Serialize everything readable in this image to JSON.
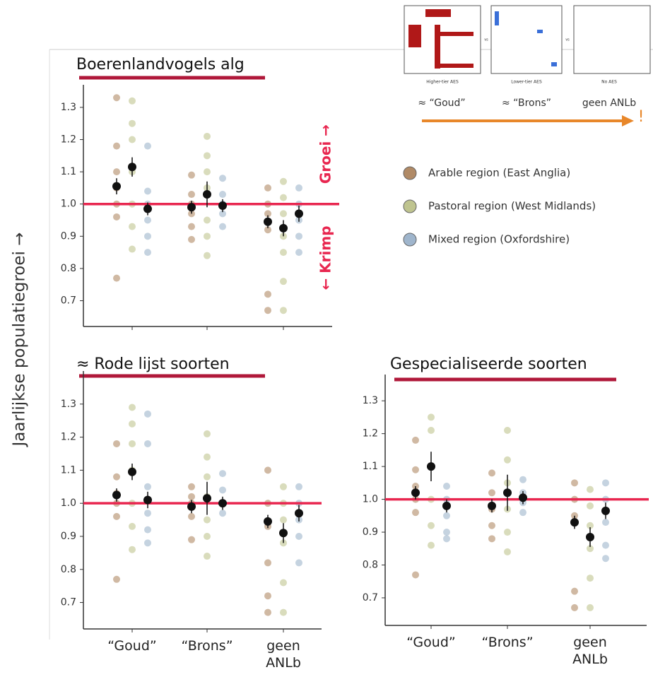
{
  "figure": {
    "ylabel": "Jaarlijkse populatiegroei →",
    "inset": {
      "panels": [
        "Higher-tier AES",
        "Lower-tier AES",
        "No AES"
      ],
      "separators": [
        "vs",
        "vs"
      ],
      "labels": [
        "≈ “Goud”",
        "≈ “Brons”",
        "geen ANLb"
      ],
      "arrow_note": "!"
    }
  },
  "chart_data": [
    {
      "type": "dotplot",
      "title": "Boerenlandvogels alg",
      "ylim": [
        0.62,
        1.37
      ],
      "yticks": [
        0.7,
        0.8,
        0.9,
        {
          "value": 1,
          "label": "1.0"
        },
        1.1,
        1.2,
        1.3
      ],
      "ref_line": 1,
      "annotations": [
        "Groei →",
        "← Krimp"
      ],
      "series": [
        {
          "name": "Arable region (East Anglia)",
          "color": "#b08a66",
          "values": [
            1.055,
            0.99,
            0.945
          ],
          "errors": [
            0.025,
            0.02,
            0.02
          ],
          "points": [
            [
              1.33,
              1.18,
              1.1,
              1.05,
              1.0,
              0.96,
              0.77
            ],
            [
              1.09,
              1.03,
              1.0,
              0.97,
              0.93,
              0.89
            ],
            [
              1.05,
              1.0,
              0.97,
              0.92,
              0.72,
              0.67
            ]
          ]
        },
        {
          "name": "Pastoral region (West Midlands)",
          "color": "#bfc48f",
          "values": [
            1.115,
            1.03,
            0.925
          ],
          "errors": [
            0.03,
            0.04,
            0.025
          ],
          "points": [
            [
              1.32,
              1.25,
              1.2,
              1.1,
              1.0,
              0.93,
              0.86
            ],
            [
              1.21,
              1.15,
              1.1,
              1.05,
              0.95,
              0.9,
              0.84
            ],
            [
              1.07,
              1.02,
              0.97,
              0.9,
              0.85,
              0.76,
              0.67
            ]
          ]
        },
        {
          "name": "Mixed region (Oxfordshire)",
          "color": "#9fb5cc",
          "values": [
            0.985,
            0.995,
            0.97
          ],
          "errors": [
            0.02,
            0.02,
            0.025
          ],
          "points": [
            [
              1.18,
              1.04,
              1.0,
              0.95,
              0.9,
              0.85
            ],
            [
              1.08,
              1.03,
              1.0,
              0.97,
              0.93
            ],
            [
              1.05,
              1.0,
              0.95,
              0.9,
              0.85
            ]
          ]
        }
      ]
    },
    {
      "type": "dotplot",
      "title": "≈ Rode lijst soorten",
      "ylim": [
        0.62,
        1.4
      ],
      "yticks": [
        0.7,
        0.8,
        0.9,
        {
          "value": 1,
          "label": "1.0"
        },
        1.1,
        1.2,
        1.3
      ],
      "ref_line": 1,
      "categories": [
        "“Goud”",
        "“Brons”",
        "geen ANLb"
      ],
      "series": [
        {
          "color": "#b08a66",
          "values": [
            1.025,
            0.99,
            0.945
          ],
          "errors": [
            0.02,
            0.02,
            0.02
          ],
          "points": [
            [
              1.18,
              1.08,
              1.03,
              1.0,
              0.96,
              0.77
            ],
            [
              1.05,
              1.02,
              1.0,
              0.96,
              0.89
            ],
            [
              1.1,
              1.0,
              0.93,
              0.82,
              0.72,
              0.67
            ]
          ]
        },
        {
          "color": "#bfc48f",
          "values": [
            1.095,
            1.015,
            0.91
          ],
          "errors": [
            0.025,
            0.05,
            0.03
          ],
          "points": [
            [
              1.29,
              1.24,
              1.18,
              1.1,
              1.0,
              0.93,
              0.86
            ],
            [
              1.21,
              1.14,
              1.08,
              1.02,
              0.95,
              0.9,
              0.84
            ],
            [
              1.05,
              1.0,
              0.95,
              0.88,
              0.76,
              0.67
            ]
          ]
        },
        {
          "color": "#9fb5cc",
          "values": [
            1.01,
            1.0,
            0.97
          ],
          "errors": [
            0.025,
            0.02,
            0.025
          ],
          "points": [
            [
              1.27,
              1.18,
              1.05,
              0.97,
              0.92,
              0.88
            ],
            [
              1.09,
              1.04,
              1.0,
              0.97
            ],
            [
              1.05,
              1.0,
              0.95,
              0.9,
              0.82
            ]
          ]
        }
      ]
    },
    {
      "type": "dotplot",
      "title": "Gespecialiseerde  soorten",
      "ylim": [
        0.616,
        1.38
      ],
      "yticks": [
        0.7,
        0.8,
        0.9,
        {
          "value": 1,
          "label": "1.0"
        },
        1.1,
        1.2,
        1.3
      ],
      "ref_line": 1,
      "categories": [
        "“Goud”",
        "“Brons”",
        "geen ANLb"
      ],
      "series": [
        {
          "color": "#b08a66",
          "values": [
            1.02,
            0.98,
            0.93
          ],
          "errors": [
            0.02,
            0.02,
            0.02
          ],
          "points": [
            [
              1.18,
              1.09,
              1.04,
              1.0,
              0.96,
              0.77
            ],
            [
              1.08,
              1.02,
              0.97,
              0.92,
              0.88
            ],
            [
              1.05,
              1.0,
              0.95,
              0.72,
              0.67
            ]
          ]
        },
        {
          "color": "#bfc48f",
          "values": [
            1.1,
            1.02,
            0.885
          ],
          "errors": [
            0.045,
            0.055,
            0.03
          ],
          "points": [
            [
              1.25,
              1.21,
              1.1,
              1.0,
              0.92,
              0.86
            ],
            [
              1.21,
              1.12,
              1.05,
              0.97,
              0.9,
              0.84
            ],
            [
              1.03,
              0.98,
              0.92,
              0.85,
              0.76,
              0.67
            ]
          ]
        },
        {
          "color": "#9fb5cc",
          "values": [
            0.98,
            1.005,
            0.965
          ],
          "errors": [
            0.02,
            0.02,
            0.025
          ],
          "points": [
            [
              1.04,
              1.0,
              0.95,
              0.9,
              0.88
            ],
            [
              1.06,
              1.02,
              0.99,
              0.96
            ],
            [
              1.05,
              1.0,
              0.93,
              0.86,
              0.82
            ]
          ]
        }
      ]
    }
  ]
}
